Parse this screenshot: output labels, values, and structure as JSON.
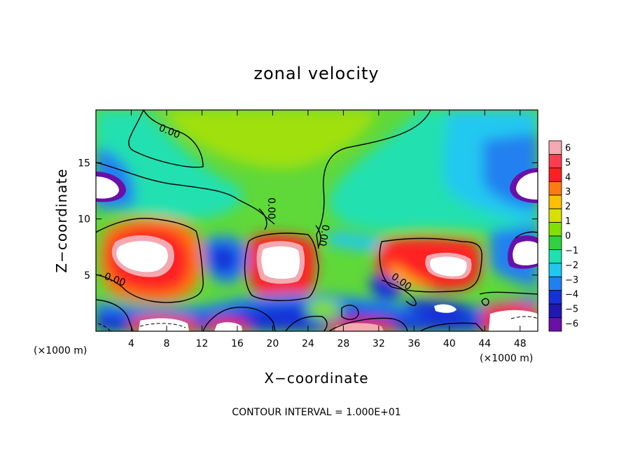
{
  "chart_data": {
    "type": "heatmap",
    "title": "zonal velocity",
    "xlabel": "X−coordinate",
    "ylabel": "Z−coordinate",
    "x_unit_label": "(×1000 m)",
    "z_unit_label": "(×1000 m)",
    "x_ticks": [
      4,
      8,
      12,
      16,
      20,
      24,
      28,
      32,
      36,
      40,
      44,
      48
    ],
    "y_ticks": [
      5,
      10,
      15
    ],
    "xlim": [
      0,
      50
    ],
    "ylim": [
      0,
      19.7
    ],
    "colorbar": {
      "levels": [
        "6",
        "5",
        "4",
        "3",
        "2",
        "1",
        "0",
        "−1",
        "−2",
        "−3",
        "−4",
        "−5",
        "−6"
      ],
      "colors": [
        "#f4a8b0",
        "#ff3c50",
        "#ff2020",
        "#ff7a10",
        "#ffc000",
        "#d8e000",
        "#80e000",
        "#30d040",
        "#20e0b0",
        "#20c8f0",
        "#2080f0",
        "#1830d8",
        "#2018b0",
        "#6a10a8"
      ]
    },
    "contour_label": "0.00",
    "contour_labels_shown": 5,
    "contour_interval_note": "CONTOUR INTERVAL = 1.000E+01",
    "features": [
      {
        "kind": "max",
        "x": 6.5,
        "z": 6.2,
        "value": 7
      },
      {
        "kind": "max",
        "x": 21,
        "z": 5.8,
        "value": 7
      },
      {
        "kind": "max",
        "x": 39.5,
        "z": 5.8,
        "value": 7
      },
      {
        "kind": "min",
        "x": 2.5,
        "z": 13,
        "value": -7
      },
      {
        "kind": "min",
        "x": 47.5,
        "z": 13,
        "value": -7
      },
      {
        "kind": "min",
        "x": 14.5,
        "z": 6.5,
        "value": -5
      },
      {
        "kind": "min",
        "x": 35,
        "z": 3.8,
        "value": -5
      },
      {
        "kind": "min",
        "x": 40.5,
        "z": 1.8,
        "value": -6
      },
      {
        "kind": "min",
        "x": 46.5,
        "z": 7,
        "value": -6
      }
    ]
  }
}
